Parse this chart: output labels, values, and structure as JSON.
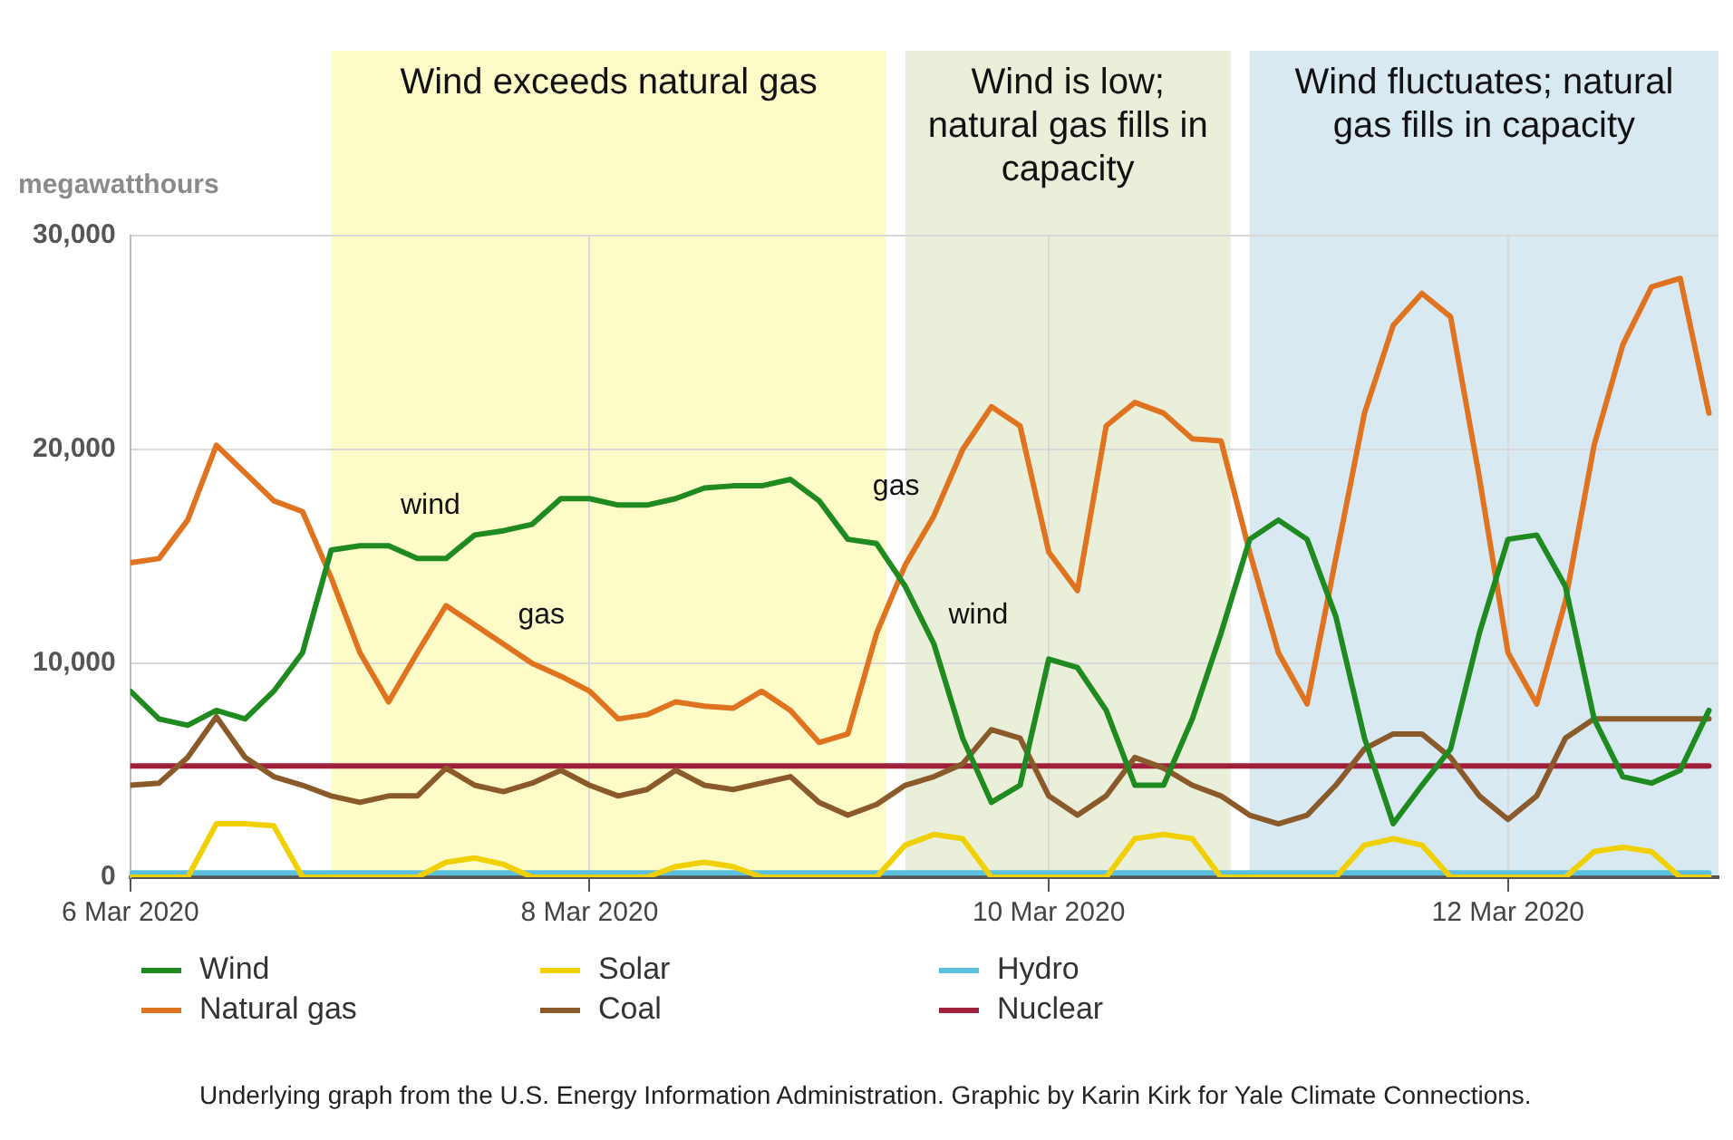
{
  "chart_data": {
    "type": "line",
    "ylabel": "megawatthours",
    "marker": "none",
    "grid": true,
    "legend": "bottom",
    "x": [
      "2020-03-06T00:00",
      "2020-03-06T03:00",
      "2020-03-06T06:00",
      "2020-03-06T09:00",
      "2020-03-06T12:00",
      "2020-03-06T15:00",
      "2020-03-06T18:00",
      "2020-03-06T21:00",
      "2020-03-07T00:00",
      "2020-03-07T03:00",
      "2020-03-07T06:00",
      "2020-03-07T09:00",
      "2020-03-07T12:00",
      "2020-03-07T15:00",
      "2020-03-07T18:00",
      "2020-03-07T21:00",
      "2020-03-08T00:00",
      "2020-03-08T03:00",
      "2020-03-08T06:00",
      "2020-03-08T09:00",
      "2020-03-08T12:00",
      "2020-03-08T15:00",
      "2020-03-08T18:00",
      "2020-03-08T21:00",
      "2020-03-09T00:00",
      "2020-03-09T03:00",
      "2020-03-09T06:00",
      "2020-03-09T09:00",
      "2020-03-09T12:00",
      "2020-03-09T15:00",
      "2020-03-09T18:00",
      "2020-03-09T21:00",
      "2020-03-10T00:00",
      "2020-03-10T03:00",
      "2020-03-10T06:00",
      "2020-03-10T09:00",
      "2020-03-10T12:00",
      "2020-03-10T15:00",
      "2020-03-10T18:00",
      "2020-03-10T21:00",
      "2020-03-11T00:00",
      "2020-03-11T03:00",
      "2020-03-11T06:00",
      "2020-03-11T09:00",
      "2020-03-11T12:00",
      "2020-03-11T15:00",
      "2020-03-11T18:00",
      "2020-03-11T21:00",
      "2020-03-12T00:00",
      "2020-03-12T03:00",
      "2020-03-12T06:00",
      "2020-03-12T09:00",
      "2020-03-12T12:00",
      "2020-03-12T15:00",
      "2020-03-12T18:00",
      "2020-03-12T21:00"
    ],
    "series": [
      {
        "name": "Wind",
        "color": "#1f8a1f",
        "values": [
          8700,
          7400,
          7100,
          7800,
          7400,
          8700,
          10500,
          15300,
          15500,
          15500,
          14900,
          14900,
          16000,
          16200,
          16500,
          17700,
          17700,
          17400,
          17400,
          17700,
          18200,
          18300,
          18300,
          18600,
          17600,
          15800,
          15600,
          13600,
          10900,
          6500,
          3500,
          4300,
          10200,
          9800,
          7800,
          4300,
          4300,
          7400,
          11400,
          15800,
          16700,
          15800,
          12200,
          6500,
          2500,
          4300,
          6000,
          11400,
          15800,
          16000,
          13600,
          7400,
          4700,
          4400,
          5000,
          7800
        ]
      },
      {
        "name": "Natural gas",
        "color": "#e0731f",
        "values": [
          14700,
          14900,
          16700,
          20200,
          18900,
          17600,
          17100,
          14000,
          10500,
          8200,
          10500,
          12700,
          11800,
          10900,
          10000,
          9400,
          8700,
          7400,
          7600,
          8200,
          8000,
          7900,
          8700,
          7800,
          6300,
          6700,
          11400,
          14600,
          16900,
          20000,
          22000,
          21100,
          15200,
          13400,
          21100,
          22200,
          21700,
          20500,
          20400,
          15200,
          10500,
          8100,
          14900,
          21700,
          25800,
          27300,
          26200,
          18700,
          10500,
          8100,
          12900,
          20200,
          24900,
          27600,
          28000,
          21700
        ]
      },
      {
        "name": "Solar",
        "color": "#f0d000",
        "values": [
          0,
          0,
          0,
          2500,
          2500,
          2400,
          0,
          0,
          0,
          0,
          0,
          700,
          900,
          600,
          0,
          0,
          0,
          0,
          0,
          500,
          700,
          500,
          0,
          0,
          0,
          0,
          0,
          1500,
          2000,
          1800,
          0,
          0,
          0,
          0,
          0,
          1800,
          2000,
          1800,
          0,
          0,
          0,
          0,
          0,
          1500,
          1800,
          1500,
          0,
          0,
          0,
          0,
          0,
          1200,
          1400,
          1200,
          0,
          0
        ]
      },
      {
        "name": "Coal",
        "color": "#8b5a2b",
        "values": [
          4300,
          4400,
          5600,
          7500,
          5600,
          4700,
          4300,
          3800,
          3500,
          3800,
          3800,
          5100,
          4300,
          4000,
          4400,
          5000,
          4300,
          3800,
          4100,
          5000,
          4300,
          4100,
          4400,
          4700,
          3500,
          2900,
          3400,
          4300,
          4700,
          5300,
          6900,
          6500,
          3800,
          2900,
          3800,
          5600,
          5100,
          4300,
          3800,
          2900,
          2500,
          2900,
          4300,
          6000,
          6700,
          6700,
          5600,
          3800,
          2700,
          3800,
          6500,
          7400,
          7400,
          7400,
          7400,
          7400
        ]
      },
      {
        "name": "Hydro",
        "color": "#5bc0de",
        "values": [
          200,
          200,
          200,
          200,
          200,
          200,
          200,
          200,
          200,
          200,
          200,
          200,
          200,
          200,
          200,
          200,
          200,
          200,
          200,
          200,
          200,
          200,
          200,
          200,
          200,
          200,
          200,
          200,
          200,
          200,
          200,
          200,
          200,
          200,
          200,
          200,
          200,
          200,
          200,
          200,
          200,
          200,
          200,
          200,
          200,
          200,
          200,
          200,
          200,
          200,
          200,
          200,
          200,
          200,
          200,
          200
        ]
      },
      {
        "name": "Nuclear",
        "color": "#a0203c",
        "values": [
          5200,
          5200,
          5200,
          5200,
          5200,
          5200,
          5200,
          5200,
          5200,
          5200,
          5200,
          5200,
          5200,
          5200,
          5200,
          5200,
          5200,
          5200,
          5200,
          5200,
          5200,
          5200,
          5200,
          5200,
          5200,
          5200,
          5200,
          5200,
          5200,
          5200,
          5200,
          5200,
          5200,
          5200,
          5200,
          5200,
          5200,
          5200,
          5200,
          5200,
          5200,
          5200,
          5200,
          5200,
          5200,
          5200,
          5200,
          5200,
          5200,
          5200,
          5200,
          5200,
          5200,
          5200,
          5200,
          5200
        ]
      }
    ],
    "xlim": [
      "2020-03-06T00:00",
      "2020-03-12T22:00"
    ],
    "xticks": [
      {
        "value": "2020-03-06",
        "label": "6 Mar 2020"
      },
      {
        "value": "2020-03-08",
        "label": "8 Mar 2020"
      },
      {
        "value": "2020-03-10",
        "label": "10 Mar 2020"
      },
      {
        "value": "2020-03-12",
        "label": "12 Mar 2020"
      }
    ],
    "ylim": [
      0,
      30000
    ],
    "yticks": [
      0,
      {
        "value": 10000,
        "label": "10,000"
      },
      {
        "value": 20000,
        "label": "20,000"
      },
      {
        "value": 30000,
        "label": "30,000"
      }
    ],
    "bands": [
      {
        "axis": "x",
        "from": "2020-03-06T21:00",
        "to": "2020-03-09T07:00",
        "label": "Wind exceeds natural gas",
        "color": "#fdfbc8"
      },
      {
        "axis": "x",
        "from": "2020-03-09T09:00",
        "to": "2020-03-10T19:00",
        "label": "Wind is low; natural gas fills in capacity",
        "color": "#e9efd9"
      },
      {
        "axis": "x",
        "from": "2020-03-10T21:00",
        "to": "2020-03-12T22:00",
        "label": "Wind fluctuates; natural gas fills in capacity",
        "color": "#d8e9f1"
      }
    ],
    "annotations": [
      {
        "text": "wind",
        "x": "2020-03-07T12:00",
        "y": 16000
      },
      {
        "text": "gas",
        "x": "2020-03-07T15:00",
        "y": 10900
      },
      {
        "text": "gas",
        "x": "2020-03-09T12:00",
        "y": 16900
      },
      {
        "text": "wind",
        "x": "2020-03-09T12:00",
        "y": 10900
      },
      "Underlying graph from the U.S. Energy Information Administration. Graphic by Karin Kirk for Yale Climate Connections."
    ]
  }
}
